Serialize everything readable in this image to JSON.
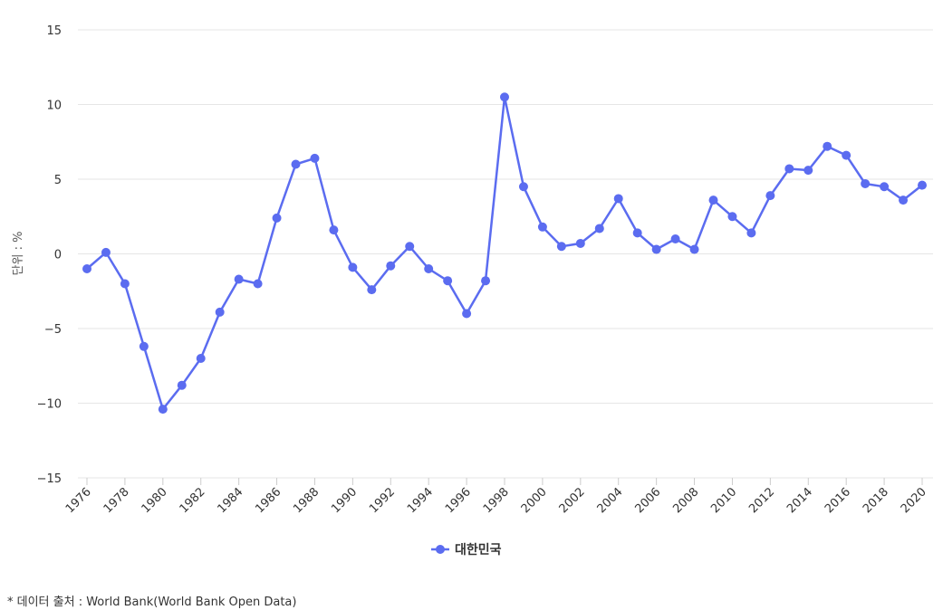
{
  "chart_data": {
    "type": "line",
    "ylabel": "단위 : %",
    "ylim": [
      -15,
      15
    ],
    "yticks": [
      15,
      10,
      5,
      0,
      -5,
      -10,
      -15
    ],
    "yticklabels": [
      "15",
      "10",
      "5",
      "0",
      "−5",
      "−10",
      "−15"
    ],
    "xticks": [
      "1976",
      "1978",
      "1980",
      "1982",
      "1984",
      "1986",
      "1988",
      "1990",
      "1992",
      "1994",
      "1996",
      "1998",
      "2000",
      "2002",
      "2004",
      "2006",
      "2008",
      "2010",
      "2012",
      "2014",
      "2016",
      "2018",
      "2020"
    ],
    "x": [
      1976,
      1977,
      1978,
      1979,
      1980,
      1981,
      1982,
      1983,
      1984,
      1985,
      1986,
      1987,
      1988,
      1989,
      1990,
      1991,
      1992,
      1993,
      1994,
      1995,
      1996,
      1997,
      1998,
      1999,
      2000,
      2001,
      2002,
      2003,
      2004,
      2005,
      2006,
      2007,
      2008,
      2009,
      2010,
      2011,
      2012,
      2013,
      2014,
      2015,
      2016,
      2017,
      2018,
      2019,
      2020
    ],
    "series": [
      {
        "name": "대한민국",
        "color": "#5b6cf0",
        "values": [
          -1.0,
          0.1,
          -2.0,
          -6.2,
          -10.4,
          -8.8,
          -7.0,
          -3.9,
          -1.7,
          -2.0,
          2.4,
          6.0,
          6.4,
          1.6,
          -0.9,
          -2.4,
          -0.8,
          0.5,
          -1.0,
          -1.8,
          -4.0,
          -1.8,
          10.5,
          4.5,
          1.8,
          0.5,
          0.7,
          1.7,
          3.7,
          1.4,
          0.3,
          1.0,
          0.3,
          3.6,
          2.5,
          1.4,
          3.9,
          5.7,
          5.6,
          7.2,
          6.6,
          4.7,
          4.5,
          3.6,
          4.6
        ]
      }
    ],
    "grid": true,
    "legend": "bottom-center"
  },
  "footer": {
    "source": "* 데이터 출처 : World Bank(World Bank Open Data)"
  }
}
